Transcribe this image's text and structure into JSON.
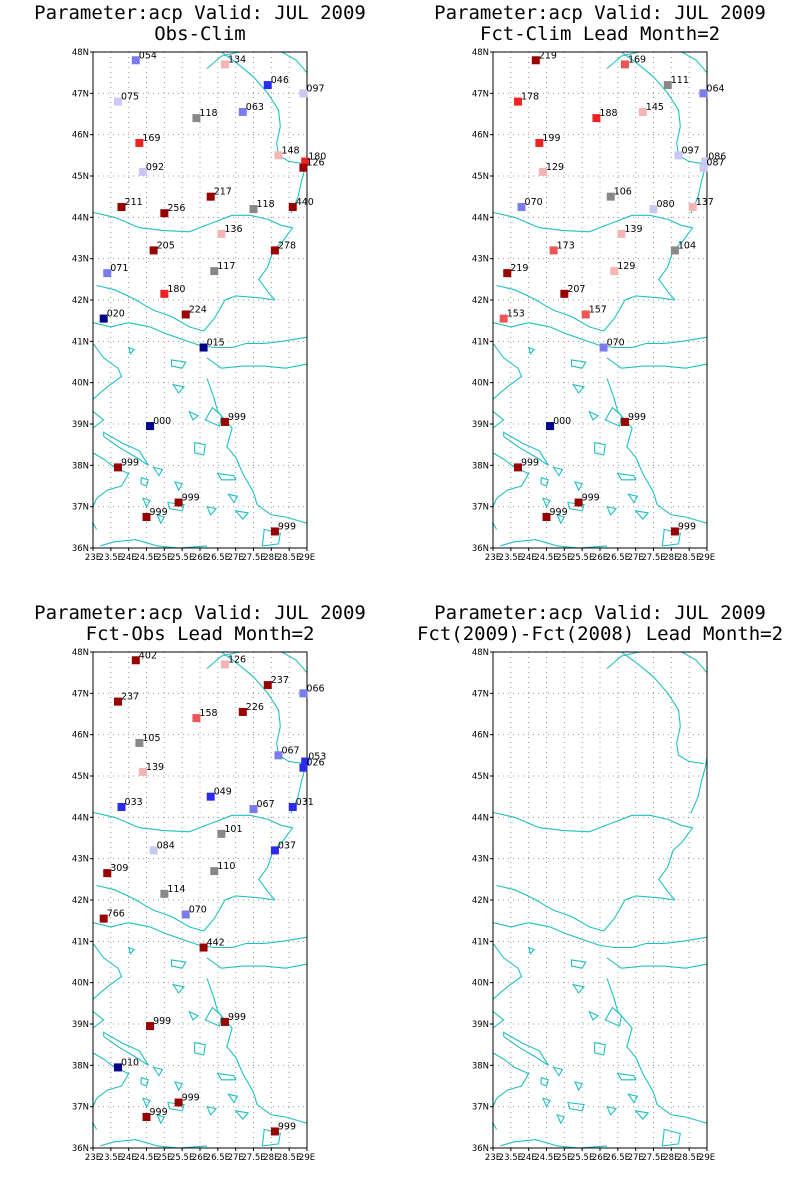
{
  "panels": [
    {
      "title1": "Parameter:acp Valid: JUL 2009",
      "title2": "Obs-Clim",
      "stations": [
        {
          "lon": 24.2,
          "lat": 47.8,
          "label": "054",
          "color": "#7b7bf0"
        },
        {
          "lon": 26.7,
          "lat": 47.7,
          "label": "134",
          "color": "#f6b4b4"
        },
        {
          "lon": 27.9,
          "lat": 47.2,
          "label": "046",
          "color": "#2b2bf0"
        },
        {
          "lon": 28.9,
          "lat": 47.0,
          "label": "097",
          "color": "#c8c8f5"
        },
        {
          "lon": 23.7,
          "lat": 46.8,
          "label": "075",
          "color": "#c8c8f5"
        },
        {
          "lon": 27.2,
          "lat": 46.55,
          "label": "063",
          "color": "#7b7bf0"
        },
        {
          "lon": 25.9,
          "lat": 46.4,
          "label": "118",
          "color": "#888888"
        },
        {
          "lon": 24.3,
          "lat": 45.8,
          "label": "169",
          "color": "#ee2222"
        },
        {
          "lon": 28.2,
          "lat": 45.5,
          "label": "148",
          "color": "#f6b4b4"
        },
        {
          "lon": 28.95,
          "lat": 45.35,
          "label": "180",
          "color": "#ee2222"
        },
        {
          "lon": 28.9,
          "lat": 45.2,
          "label": "126",
          "color": "#990000"
        },
        {
          "lon": 24.4,
          "lat": 45.1,
          "label": "092",
          "color": "#c8c8f5"
        },
        {
          "lon": 26.3,
          "lat": 44.5,
          "label": "217",
          "color": "#990000"
        },
        {
          "lon": 23.8,
          "lat": 44.25,
          "label": "211",
          "color": "#990000"
        },
        {
          "lon": 25.0,
          "lat": 44.1,
          "label": "256",
          "color": "#990000"
        },
        {
          "lon": 27.5,
          "lat": 44.2,
          "label": "118",
          "color": "#888888"
        },
        {
          "lon": 28.6,
          "lat": 44.25,
          "label": "440",
          "color": "#990000"
        },
        {
          "lon": 26.6,
          "lat": 43.6,
          "label": "136",
          "color": "#f6b4b4"
        },
        {
          "lon": 24.7,
          "lat": 43.2,
          "label": "205",
          "color": "#990000"
        },
        {
          "lon": 28.1,
          "lat": 43.2,
          "label": "278",
          "color": "#990000"
        },
        {
          "lon": 23.4,
          "lat": 42.65,
          "label": "071",
          "color": "#7b7bf0"
        },
        {
          "lon": 26.4,
          "lat": 42.7,
          "label": "117",
          "color": "#888888"
        },
        {
          "lon": 25.0,
          "lat": 42.15,
          "label": "180",
          "color": "#ee2222"
        },
        {
          "lon": 25.6,
          "lat": 41.65,
          "label": "224",
          "color": "#990000"
        },
        {
          "lon": 23.3,
          "lat": 41.55,
          "label": "020",
          "color": "#00008b"
        },
        {
          "lon": 26.1,
          "lat": 40.85,
          "label": "015",
          "color": "#00008b"
        },
        {
          "lon": 26.7,
          "lat": 39.05,
          "label": "999",
          "color": "#990000"
        },
        {
          "lon": 24.6,
          "lat": 38.95,
          "label": "000",
          "color": "#00008b"
        },
        {
          "lon": 23.7,
          "lat": 37.95,
          "label": "999",
          "color": "#990000"
        },
        {
          "lon": 25.4,
          "lat": 37.1,
          "label": "999",
          "color": "#990000"
        },
        {
          "lon": 24.5,
          "lat": 36.75,
          "label": "999",
          "color": "#990000"
        },
        {
          "lon": 28.1,
          "lat": 36.4,
          "label": "999",
          "color": "#990000"
        }
      ]
    },
    {
      "title1": "Parameter:acp Valid: JUL 2009",
      "title2": "Fct-Clim Lead Month=2",
      "stations": [
        {
          "lon": 24.2,
          "lat": 47.8,
          "label": "219",
          "color": "#990000"
        },
        {
          "lon": 26.7,
          "lat": 47.7,
          "label": "169",
          "color": "#ee5555"
        },
        {
          "lon": 27.9,
          "lat": 47.2,
          "label": "111",
          "color": "#888888"
        },
        {
          "lon": 28.9,
          "lat": 47.0,
          "label": "064",
          "color": "#7b7bf0"
        },
        {
          "lon": 23.7,
          "lat": 46.8,
          "label": "178",
          "color": "#ee2222"
        },
        {
          "lon": 27.2,
          "lat": 46.55,
          "label": "145",
          "color": "#f6b4b4"
        },
        {
          "lon": 25.9,
          "lat": 46.4,
          "label": "188",
          "color": "#ee2222"
        },
        {
          "lon": 24.3,
          "lat": 45.8,
          "label": "199",
          "color": "#ee2222"
        },
        {
          "lon": 28.2,
          "lat": 45.5,
          "label": "097",
          "color": "#c8c8f5"
        },
        {
          "lon": 28.95,
          "lat": 45.35,
          "label": "086",
          "color": "#c8c8f5"
        },
        {
          "lon": 28.9,
          "lat": 45.2,
          "label": "087",
          "color": "#c8c8f5"
        },
        {
          "lon": 24.4,
          "lat": 45.1,
          "label": "129",
          "color": "#f6b4b4"
        },
        {
          "lon": 26.3,
          "lat": 44.5,
          "label": "106",
          "color": "#888888"
        },
        {
          "lon": 23.8,
          "lat": 44.25,
          "label": "070",
          "color": "#7b7bf0"
        },
        {
          "lon": 27.5,
          "lat": 44.2,
          "label": "080",
          "color": "#c8c8f5"
        },
        {
          "lon": 28.6,
          "lat": 44.25,
          "label": "137",
          "color": "#f6b4b4"
        },
        {
          "lon": 26.6,
          "lat": 43.6,
          "label": "139",
          "color": "#f6b4b4"
        },
        {
          "lon": 24.7,
          "lat": 43.2,
          "label": "173",
          "color": "#ee5555"
        },
        {
          "lon": 28.1,
          "lat": 43.2,
          "label": "104",
          "color": "#888888"
        },
        {
          "lon": 23.4,
          "lat": 42.65,
          "label": "219",
          "color": "#990000"
        },
        {
          "lon": 26.4,
          "lat": 42.7,
          "label": "129",
          "color": "#f6b4b4"
        },
        {
          "lon": 25.0,
          "lat": 42.15,
          "label": "207",
          "color": "#990000"
        },
        {
          "lon": 25.6,
          "lat": 41.65,
          "label": "157",
          "color": "#ee5555"
        },
        {
          "lon": 23.3,
          "lat": 41.55,
          "label": "153",
          "color": "#ee5555"
        },
        {
          "lon": 26.1,
          "lat": 40.85,
          "label": "070",
          "color": "#7b7bf0"
        },
        {
          "lon": 26.7,
          "lat": 39.05,
          "label": "999",
          "color": "#990000"
        },
        {
          "lon": 24.6,
          "lat": 38.95,
          "label": "000",
          "color": "#00008b"
        },
        {
          "lon": 23.7,
          "lat": 37.95,
          "label": "999",
          "color": "#990000"
        },
        {
          "lon": 25.4,
          "lat": 37.1,
          "label": "999",
          "color": "#990000"
        },
        {
          "lon": 24.5,
          "lat": 36.75,
          "label": "999",
          "color": "#990000"
        },
        {
          "lon": 28.1,
          "lat": 36.4,
          "label": "999",
          "color": "#990000"
        }
      ]
    },
    {
      "title1": "Parameter:acp Valid: JUL 2009",
      "title2": "Fct-Obs Lead Month=2",
      "stations": [
        {
          "lon": 24.2,
          "lat": 47.8,
          "label": "402",
          "color": "#990000"
        },
        {
          "lon": 26.7,
          "lat": 47.7,
          "label": "126",
          "color": "#f6b4b4"
        },
        {
          "lon": 27.9,
          "lat": 47.2,
          "label": "237",
          "color": "#990000"
        },
        {
          "lon": 28.9,
          "lat": 47.0,
          "label": "066",
          "color": "#7b7bf0"
        },
        {
          "lon": 23.7,
          "lat": 46.8,
          "label": "237",
          "color": "#990000"
        },
        {
          "lon": 27.2,
          "lat": 46.55,
          "label": "226",
          "color": "#990000"
        },
        {
          "lon": 25.9,
          "lat": 46.4,
          "label": "158",
          "color": "#ee5555"
        },
        {
          "lon": 24.3,
          "lat": 45.8,
          "label": "105",
          "color": "#888888"
        },
        {
          "lon": 28.2,
          "lat": 45.5,
          "label": "067",
          "color": "#7b7bf0"
        },
        {
          "lon": 28.95,
          "lat": 45.35,
          "label": "053",
          "color": "#2b2bf0"
        },
        {
          "lon": 28.9,
          "lat": 45.2,
          "label": "026",
          "color": "#2b2bf0"
        },
        {
          "lon": 24.4,
          "lat": 45.1,
          "label": "139",
          "color": "#f6b4b4"
        },
        {
          "lon": 26.3,
          "lat": 44.5,
          "label": "049",
          "color": "#2b2bf0"
        },
        {
          "lon": 23.8,
          "lat": 44.25,
          "label": "033",
          "color": "#2b2bf0"
        },
        {
          "lon": 27.5,
          "lat": 44.2,
          "label": "067",
          "color": "#7b7bf0"
        },
        {
          "lon": 28.6,
          "lat": 44.25,
          "label": "031",
          "color": "#2b2bf0"
        },
        {
          "lon": 26.6,
          "lat": 43.6,
          "label": "101",
          "color": "#888888"
        },
        {
          "lon": 24.7,
          "lat": 43.2,
          "label": "084",
          "color": "#c8c8f5"
        },
        {
          "lon": 28.1,
          "lat": 43.2,
          "label": "037",
          "color": "#2b2bf0"
        },
        {
          "lon": 23.4,
          "lat": 42.65,
          "label": "309",
          "color": "#990000"
        },
        {
          "lon": 26.4,
          "lat": 42.7,
          "label": "110",
          "color": "#888888"
        },
        {
          "lon": 25.0,
          "lat": 42.15,
          "label": "114",
          "color": "#888888"
        },
        {
          "lon": 25.6,
          "lat": 41.65,
          "label": "070",
          "color": "#7b7bf0"
        },
        {
          "lon": 23.3,
          "lat": 41.55,
          "label": "766",
          "color": "#990000"
        },
        {
          "lon": 26.1,
          "lat": 40.85,
          "label": "442",
          "color": "#990000"
        },
        {
          "lon": 26.7,
          "lat": 39.05,
          "label": "999",
          "color": "#990000"
        },
        {
          "lon": 24.6,
          "lat": 38.95,
          "label": "999",
          "color": "#990000"
        },
        {
          "lon": 23.7,
          "lat": 37.95,
          "label": "010",
          "color": "#00008b"
        },
        {
          "lon": 25.4,
          "lat": 37.1,
          "label": "999",
          "color": "#990000"
        },
        {
          "lon": 24.5,
          "lat": 36.75,
          "label": "999",
          "color": "#990000"
        },
        {
          "lon": 28.1,
          "lat": 36.4,
          "label": "999",
          "color": "#990000"
        }
      ]
    },
    {
      "title1": "Parameter:acp Valid: JUL 2009",
      "title2": "Fct(2009)-Fct(2008) Lead Month=2",
      "stations": []
    }
  ],
  "axes": {
    "lat_ticks": [
      "48N",
      "47N",
      "46N",
      "45N",
      "44N",
      "43N",
      "42N",
      "41N",
      "40N",
      "39N",
      "38N",
      "37N",
      "36N"
    ],
    "lon_ticks": [
      "23E",
      "23.5E",
      "24E",
      "24.5E",
      "25E",
      "25.5E",
      "26E",
      "26.5E",
      "27E",
      "27.5E",
      "28E",
      "28.5E",
      "29E"
    ],
    "lon_range": [
      23,
      29
    ],
    "lat_range": [
      36,
      48
    ]
  },
  "colors": {
    "coast": "#20c0c0",
    "grid": "#999999"
  }
}
